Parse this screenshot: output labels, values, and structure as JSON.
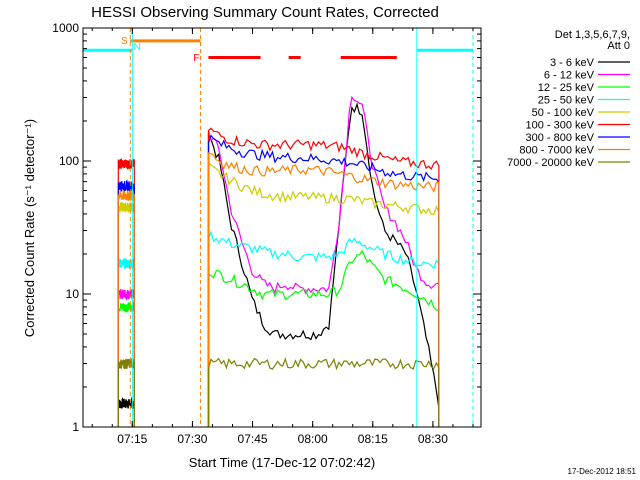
{
  "chart_data": {
    "type": "line",
    "title": "HESSI Observing Summary Count Rates, Corrected",
    "xlabel": "Start Time (17-Dec-12 07:02:42)",
    "ylabel": "Corrected Count Rate (s⁻¹ detector⁻¹)",
    "yscale": "log",
    "ylim": [
      1,
      1000
    ],
    "xlim": [
      "07:02:42",
      "08:42:00"
    ],
    "x_ticks": [
      "07:15",
      "07:30",
      "07:45",
      "08:00",
      "08:15",
      "08:30"
    ],
    "y_ticks": [
      "1",
      "10",
      "100",
      "1000"
    ],
    "legend_title": "Det 1,3,5,6,7,9,",
    "legend_subtitle": "Att 0",
    "legend_placement": "right",
    "timestamp": "17-Dec-2012 18:51",
    "markers": {
      "S": "07:14:30",
      "N": "07:15:00",
      "F": "07:32:00",
      "N_end": "08:26:00"
    },
    "flags": [
      {
        "color": "#ff7f00",
        "from": "07:14:30",
        "to": "07:32:00",
        "y": 800
      },
      {
        "color": "#ff0000",
        "from": "07:34:00",
        "to": "07:47:00",
        "y": 600
      },
      {
        "color": "#ff0000",
        "from": "07:54:00",
        "to": "07:57:00",
        "y": 600
      },
      {
        "color": "#ff0000",
        "from": "08:07:00",
        "to": "08:21:00",
        "y": 600
      },
      {
        "color": "#00ffff",
        "from": "07:02:42",
        "to": "07:15:00",
        "y": 680
      },
      {
        "color": "#00ffff",
        "from": "08:26:00",
        "to": "08:40:00",
        "y": 680
      }
    ],
    "segments": [
      {
        "from": "07:11:30",
        "to": "07:15:30"
      },
      {
        "from": "07:34:00",
        "to": "08:31:30"
      }
    ],
    "series": [
      {
        "name": "3 - 6 keV",
        "color": "#000000",
        "values": [
          [
            1.5,
            1.5
          ],
          [
            160,
            100,
            35,
            18,
            9,
            6,
            5,
            5,
            5,
            5,
            5,
            6,
            40,
            260,
            240,
            60,
            30,
            25,
            20,
            10,
            4,
            1.5
          ]
        ]
      },
      {
        "name": "6 - 12 keV",
        "color": "#ff00ff",
        "values": [
          [
            10,
            10
          ],
          [
            165,
            120,
            45,
            25,
            15,
            12,
            11,
            12,
            11,
            11,
            11,
            11,
            40,
            330,
            260,
            90,
            45,
            35,
            25,
            15,
            12,
            12
          ]
        ]
      },
      {
        "name": "12 - 25 keV",
        "color": "#00ff00",
        "values": [
          [
            8,
            8
          ],
          [
            15,
            14,
            13,
            12,
            11,
            10,
            10,
            10,
            10,
            10,
            10,
            10,
            11,
            18,
            20,
            16,
            13,
            12,
            11,
            10,
            9,
            8
          ]
        ]
      },
      {
        "name": "25 - 50 keV",
        "color": "#00ffff",
        "values": [
          [
            17,
            17
          ],
          [
            28,
            26,
            24,
            23,
            22,
            21,
            20,
            20,
            19,
            19,
            19,
            19,
            20,
            25,
            24,
            22,
            20,
            19,
            18,
            17,
            17,
            17
          ]
        ]
      },
      {
        "name": "50 - 100 keV",
        "color": "#cccc00",
        "values": [
          [
            45,
            45
          ],
          [
            90,
            80,
            72,
            65,
            60,
            57,
            55,
            54,
            54,
            54,
            53,
            53,
            52,
            52,
            50,
            48,
            47,
            46,
            45,
            44,
            43,
            43
          ]
        ]
      },
      {
        "name": "100 - 300 keV",
        "color": "#ff0000",
        "values": [
          [
            95,
            95
          ],
          [
            175,
            155,
            145,
            140,
            135,
            133,
            132,
            132,
            133,
            133,
            132,
            130,
            128,
            122,
            115,
            110,
            105,
            100,
            98,
            96,
            95,
            93
          ]
        ]
      },
      {
        "name": "300 - 800 keV",
        "color": "#0000ff",
        "values": [
          [
            65,
            65
          ],
          [
            150,
            135,
            125,
            118,
            113,
            110,
            108,
            107,
            106,
            105,
            104,
            102,
            100,
            97,
            92,
            88,
            84,
            80,
            78,
            76,
            75,
            74
          ]
        ]
      },
      {
        "name": "800 - 7000 keV",
        "color": "#ff7f00",
        "values": [
          [
            55,
            55
          ],
          [
            120,
            100,
            92,
            88,
            85,
            84,
            84,
            85,
            86,
            86,
            85,
            83,
            80,
            77,
            74,
            71,
            69,
            67,
            66,
            65,
            64,
            64
          ]
        ]
      },
      {
        "name": "7000 - 20000 keV",
        "color": "#808000",
        "values": [
          [
            3,
            3
          ],
          [
            3,
            3,
            3,
            3,
            3,
            3,
            3,
            3,
            3,
            3,
            3,
            3,
            3,
            3,
            3,
            3,
            3,
            3,
            3,
            3,
            3,
            3
          ]
        ]
      }
    ]
  }
}
